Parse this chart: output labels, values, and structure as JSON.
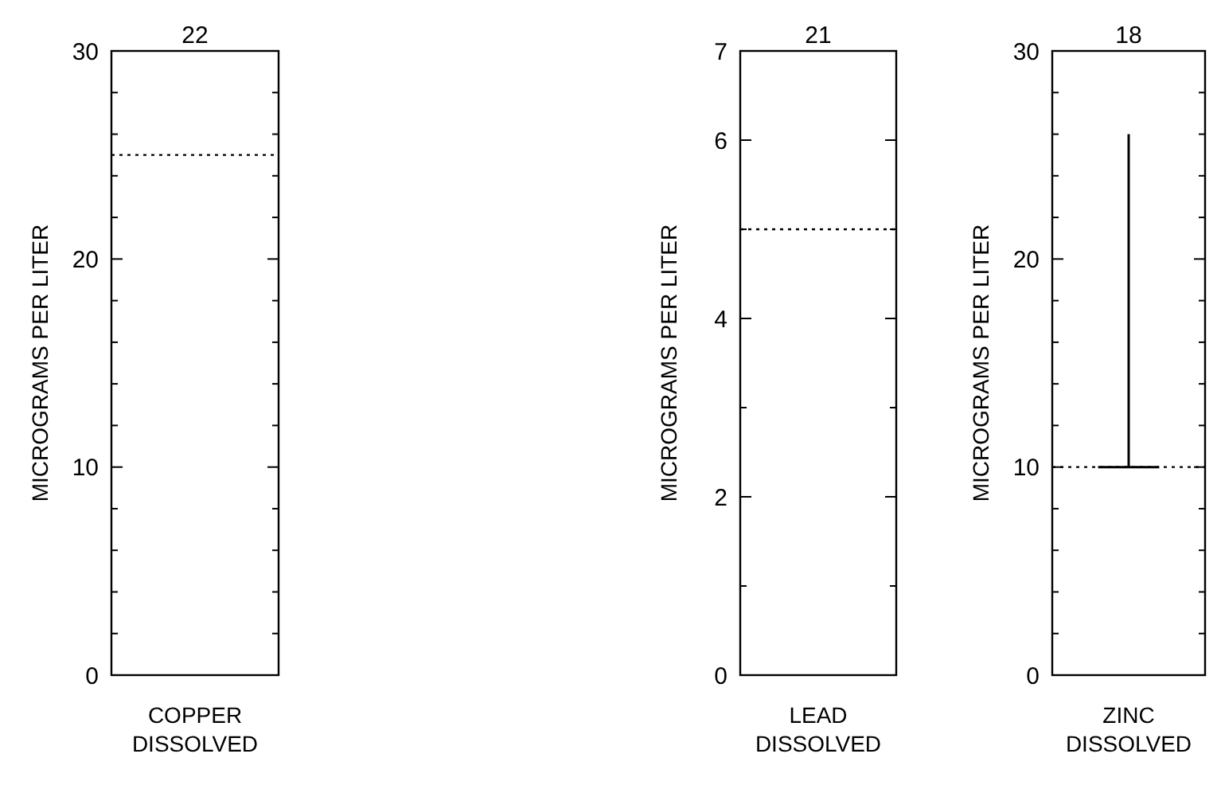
{
  "chart_data": [
    {
      "type": "box",
      "categories": [
        "COPPER DISSOLVED"
      ],
      "boxes": [
        null
      ],
      "ylabel": "MICROGRAMS PER LITER",
      "ylim": [
        0,
        30
      ],
      "yticks": [
        0,
        {
          "value": 2,
          "label": null
        },
        {
          "value": 4,
          "label": null
        },
        {
          "value": 6,
          "label": null
        },
        {
          "value": 8,
          "label": null
        },
        10,
        {
          "value": 12,
          "label": null
        },
        {
          "value": 14,
          "label": null
        },
        {
          "value": 16,
          "label": null
        },
        {
          "value": 18,
          "label": null
        },
        20,
        {
          "value": 22,
          "label": null
        },
        {
          "value": 24,
          "label": null
        },
        {
          "value": 26,
          "label": null
        },
        {
          "value": 28,
          "label": null
        },
        30
      ],
      "annotations": [
        "22"
      ],
      "ref_lines": [
        {
          "axis": "y",
          "value": 25,
          "color": "#000000",
          "line_style": "dotted"
        }
      ]
    },
    {
      "type": "box",
      "categories": [
        "LEAD DISSOLVED"
      ],
      "boxes": [
        null
      ],
      "ylabel": "MICROGRAMS PER LITER",
      "ylim": [
        0,
        7
      ],
      "yticks": [
        0,
        {
          "value": 1,
          "label": null
        },
        2,
        {
          "value": 3,
          "label": null
        },
        4,
        {
          "value": 5,
          "label": null
        },
        6,
        7
      ],
      "annotations": [
        "21"
      ],
      "ref_lines": [
        {
          "axis": "y",
          "value": 5,
          "color": "#000000",
          "line_style": "dotted"
        }
      ]
    },
    {
      "type": "box",
      "categories": [
        "ZINC DISSOLVED"
      ],
      "boxes": [
        {
          "low": 10,
          "q1": 10,
          "median": 10,
          "q3": 10,
          "high": 26
        }
      ],
      "ylabel": "MICROGRAMS PER LITER",
      "ylim": [
        0,
        30
      ],
      "yticks": [
        0,
        {
          "value": 2,
          "label": null
        },
        {
          "value": 4,
          "label": null
        },
        {
          "value": 6,
          "label": null
        },
        {
          "value": 8,
          "label": null
        },
        10,
        {
          "value": 12,
          "label": null
        },
        {
          "value": 14,
          "label": null
        },
        {
          "value": 16,
          "label": null
        },
        {
          "value": 18,
          "label": null
        },
        20,
        {
          "value": 22,
          "label": null
        },
        {
          "value": 24,
          "label": null
        },
        {
          "value": 26,
          "label": null
        },
        {
          "value": 28,
          "label": null
        },
        30
      ],
      "annotations": [
        "18"
      ],
      "ref_lines": [
        {
          "axis": "y",
          "value": 10,
          "color": "#000000",
          "line_style": "dotted"
        }
      ]
    }
  ]
}
